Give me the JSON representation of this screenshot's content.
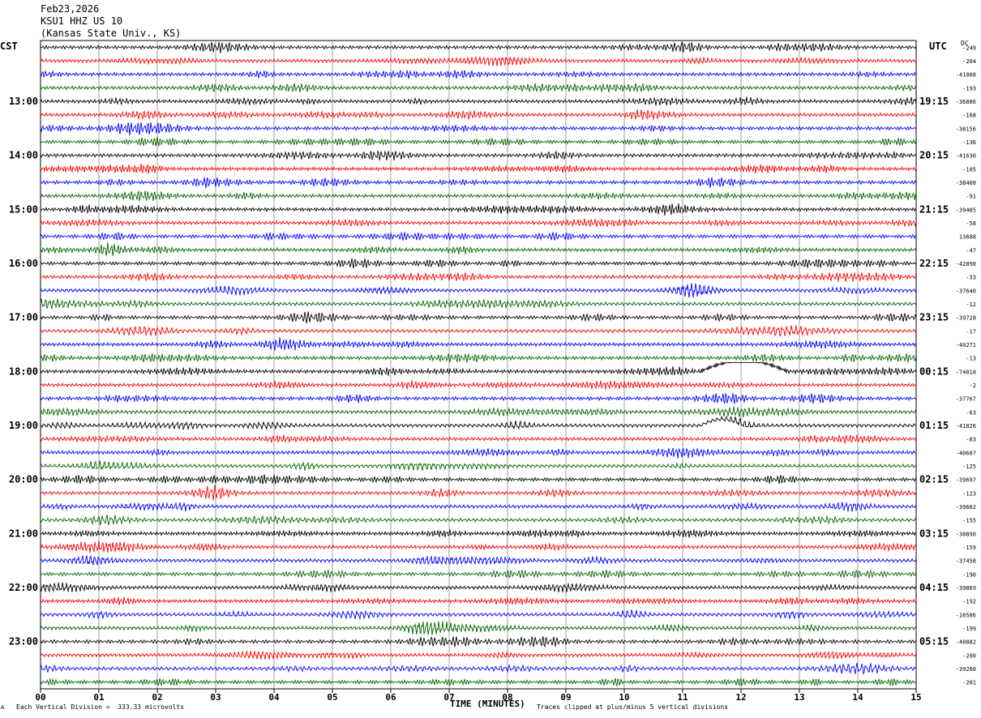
{
  "header": {
    "date": "Feb23,2026",
    "station": "KSU1 HHZ US 10",
    "location": "(Kansas State Univ., KS)"
  },
  "left_tz": "CST",
  "right_tz": "UTC",
  "dc_label": "DC",
  "footer": {
    "scale_note": "Each Vertical Division =  333.33 microvolts",
    "clip_note": "Traces clipped at plus/minus 5 vertical divisions",
    "corner_mark": "A"
  },
  "chart_data": {
    "type": "line",
    "title": "",
    "xlabel": "TIME (MINUTES)",
    "ylabel": "",
    "xlim": [
      0,
      15
    ],
    "x_ticks": [
      "00",
      "01",
      "02",
      "03",
      "04",
      "05",
      "06",
      "07",
      "08",
      "09",
      "10",
      "11",
      "12",
      "13",
      "14",
      "15"
    ],
    "left_hour_labels": [
      "13:00",
      "14:00",
      "15:00",
      "16:00",
      "17:00",
      "18:00",
      "19:00",
      "20:00",
      "21:00",
      "22:00",
      "23:00"
    ],
    "right_hour_labels": [
      "19:15",
      "20:15",
      "21:15",
      "22:15",
      "23:15",
      "00:15",
      "01:15",
      "02:15",
      "03:15",
      "04:15",
      "05:15"
    ],
    "trace_colors": [
      "#000000",
      "#ff0000",
      "#0000ff",
      "#006400"
    ],
    "trace_count": 48,
    "dc_offsets": [
      "-249",
      "-204",
      "-41808",
      "-193",
      "-36886",
      "-168",
      "-38156",
      "-136",
      "-41630",
      "-105",
      "-38408",
      "-91",
      "-39485",
      "-58",
      "13688",
      "-47",
      "-42890",
      "-33",
      "-37640",
      "-12",
      "-39728",
      "-17",
      "-40271",
      "-13",
      "-74818",
      "-2",
      "-37767",
      "-63",
      "-41826",
      "-83",
      "-40607",
      "-125",
      "-39697",
      "-123",
      "-39602",
      "-155",
      "-38890",
      "-159",
      "-37458",
      "-190",
      "-39869",
      "-192",
      "-16586",
      "-199",
      "-40882",
      "-200",
      "-39260",
      "-201"
    ],
    "grid": true,
    "event": {
      "trace_index": 24,
      "start_minute": 11.3,
      "end_minute": 12.8
    }
  }
}
